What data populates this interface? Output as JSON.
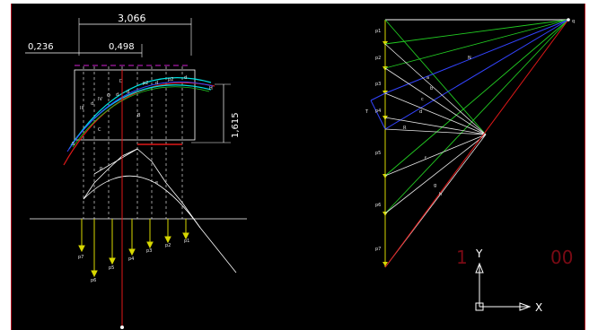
{
  "colors": {
    "background": "#000000",
    "border": "#b01020",
    "white": "#ffffff",
    "yellow": "#d8d800",
    "green": "#22cc22",
    "blue": "#3344ff",
    "red": "#e01818",
    "cyan": "#00e0e0",
    "magenta": "#d020d0",
    "dimred": "#7a0a14"
  },
  "dimensions": {
    "overall": "3,066",
    "left_offset": "0,236",
    "span": "0,498",
    "rise": "1,615"
  },
  "force_labels": {
    "p1": "p1",
    "p2": "p2",
    "p3": "p3",
    "p4": "p4",
    "p5": "p5",
    "p6": "p6",
    "p7": "p7"
  },
  "polygon_labels": {
    "q": "q",
    "t": "T",
    "r": "R",
    "n": "N"
  },
  "ucs": {
    "x": "X",
    "y": "Y"
  },
  "faint_text": {
    "left": "1",
    "right": "00"
  }
}
